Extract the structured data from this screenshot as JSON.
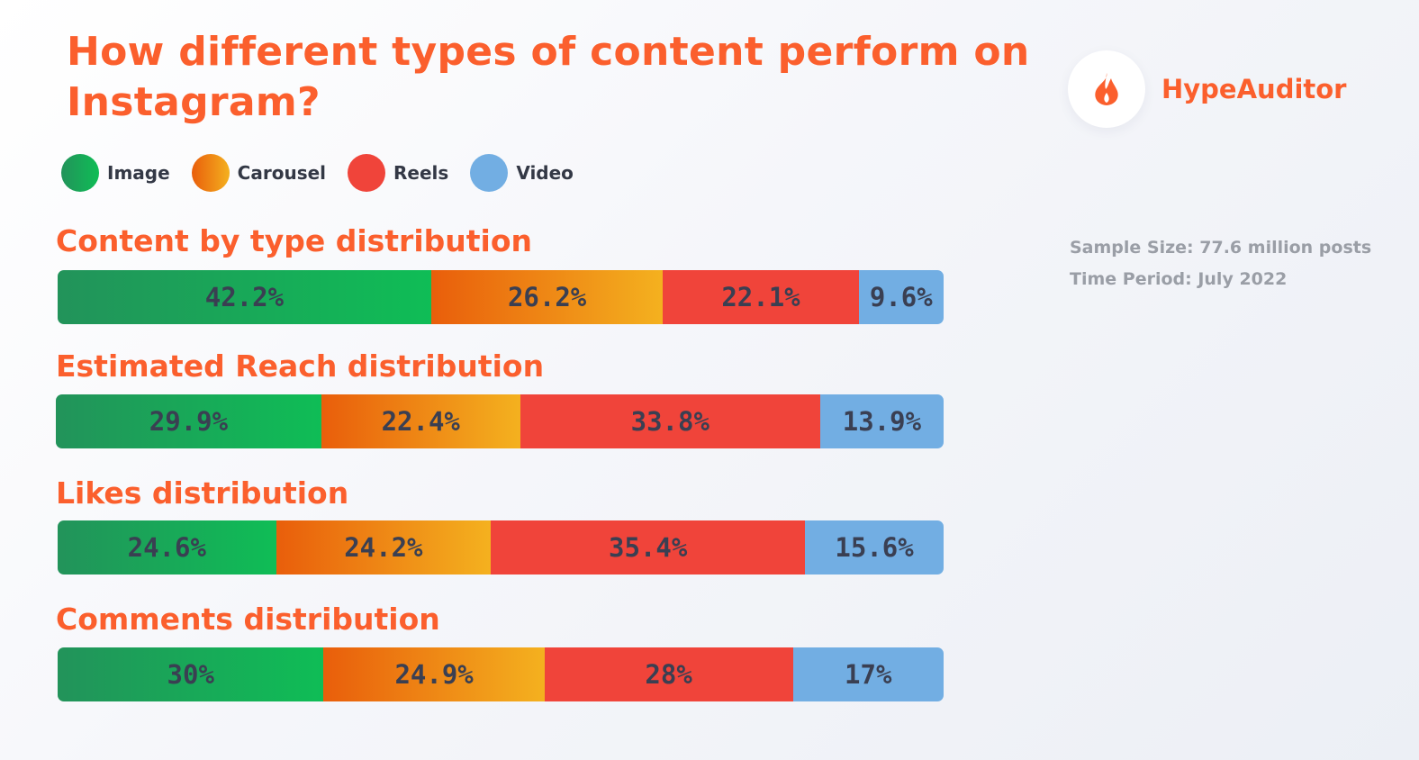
{
  "title": "How different types of content perform on Instagram?",
  "brand": {
    "name": "HypeAuditor",
    "icon": "flame-icon"
  },
  "legend": [
    {
      "label": "Image"
    },
    {
      "label": "Carousel"
    },
    {
      "label": "Reels"
    },
    {
      "label": "Video"
    }
  ],
  "meta": {
    "sample_size": "Sample Size: 77.6 million posts",
    "time_period": "Time Period: July 2022"
  },
  "colors": {
    "title": "#fb5f2d",
    "image_start": "#22935a",
    "image_end": "#0fbd56",
    "carousel_start": "#e95e0b",
    "carousel_end": "#f4b11f",
    "reels": "#f0443a",
    "video": "#72aee3",
    "value_text": "#3a3f52",
    "meta_text": "#9a9ea6"
  },
  "chart_data": {
    "type": "bar",
    "orientation": "horizontal",
    "stacked": true,
    "unit": "%",
    "categories": [
      "Content by type distribution",
      "Estimated Reach distribution",
      "Likes distribution",
      "Comments distribution"
    ],
    "series": [
      {
        "name": "Image",
        "values": [
          42.2,
          29.9,
          24.6,
          30
        ]
      },
      {
        "name": "Carousel",
        "values": [
          26.2,
          22.4,
          24.2,
          24.9
        ]
      },
      {
        "name": "Reels",
        "values": [
          22.1,
          33.8,
          35.4,
          28
        ]
      },
      {
        "name": "Video",
        "values": [
          9.6,
          13.9,
          15.6,
          17
        ]
      }
    ],
    "value_labels": [
      [
        "42.2%",
        "26.2%",
        "22.1%",
        "9.6%"
      ],
      [
        "29.9%",
        "22.4%",
        "33.8%",
        "13.9%"
      ],
      [
        "24.6%",
        "24.2%",
        "35.4%",
        "15.6%"
      ],
      [
        "30%",
        "24.9%",
        "28%",
        "17%"
      ]
    ],
    "legend_position": "top-left",
    "grid": false
  }
}
